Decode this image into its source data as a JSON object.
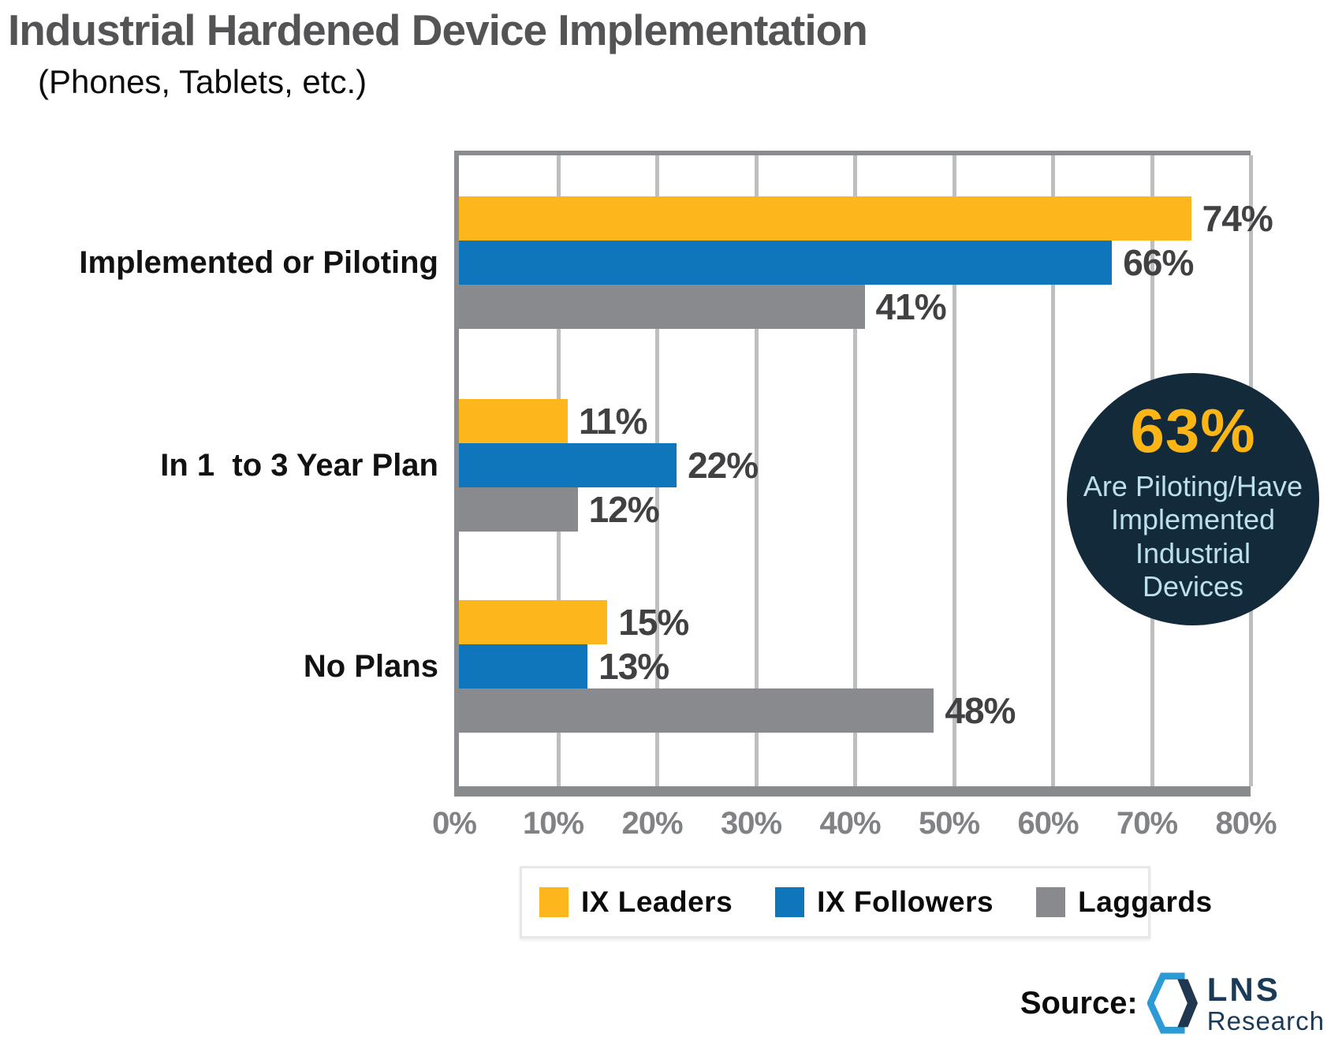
{
  "title": "Industrial Hardened Device Implementation",
  "subtitle": "(Phones, Tablets, etc.)",
  "chart_data": {
    "type": "bar",
    "orientation": "horizontal",
    "title": "Industrial Hardened Device Implementation (Phones, Tablets, etc.)",
    "categories": [
      "Implemented or Piloting",
      "In 1  to 3 Year Plan",
      "No Plans"
    ],
    "series": [
      {
        "name": "IX Leaders",
        "color": "#fdb71c",
        "values": [
          74,
          11,
          15
        ]
      },
      {
        "name": "IX Followers",
        "color": "#0f76bb",
        "values": [
          66,
          22,
          13
        ]
      },
      {
        "name": "Laggards",
        "color": "#898a8d",
        "values": [
          41,
          12,
          48
        ]
      }
    ],
    "value_suffix": "%",
    "xmax": 80,
    "x_tick_labels": [
      "0%",
      "10%",
      "20%",
      "30%",
      "40%",
      "50%",
      "60%",
      "70%",
      "80%"
    ],
    "grid": "vertical gridlines every 10%",
    "legend_position": "bottom"
  },
  "badge": {
    "headline": "63%",
    "lines": [
      "Are Piloting/Have",
      "Implemented",
      "Industrial",
      "Devices"
    ],
    "bg_color": "#132a3b",
    "headline_color": "#fbb615",
    "text_color": "#bcdfed"
  },
  "source": {
    "label": "Source:",
    "brand_name": "LNS",
    "brand_sub": "Research",
    "logo_blue": "#2c9ad4",
    "logo_navy": "#1f3850"
  },
  "colors": {
    "title": "#545457",
    "category_label": "#121212",
    "value_label": "#414042",
    "tick_label": "#808285",
    "gridline": "#bcbec0",
    "frame": "#898a8c",
    "legend_border": "#e7e8e9",
    "background": "#ffffff"
  }
}
